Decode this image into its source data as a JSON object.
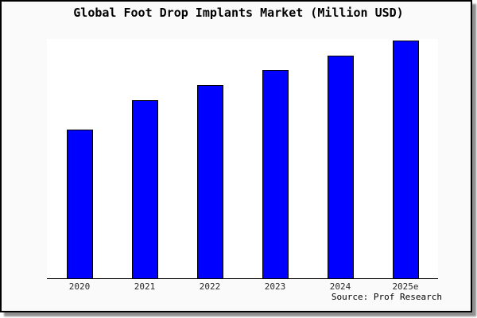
{
  "figure": {
    "background": "#fafafa",
    "plot_background": "#ffffff",
    "frame_color": "#000000",
    "shadow_color": "#8f8f8f",
    "source_caption": "Source: Prof Research"
  },
  "chart_data": {
    "type": "bar",
    "title": "Global Foot Drop Implants Market (Million USD)",
    "categories": [
      "2020",
      "2021",
      "2022",
      "2023",
      "2024",
      "2025e"
    ],
    "values": [
      100,
      120,
      130,
      140,
      150,
      160
    ],
    "values_note": "relative estimates; no y-axis tick labels are shown in the chart",
    "xlabel": "",
    "ylabel": "",
    "ylim": [
      0,
      161
    ],
    "grid": false,
    "legend": false,
    "y_axis_visible": false,
    "bar_color": "#0000ff",
    "bar_edge_color": "#000000",
    "axis_line_color": "#000000",
    "tick_label_color": "#262626",
    "source": "Source: Prof Research"
  }
}
